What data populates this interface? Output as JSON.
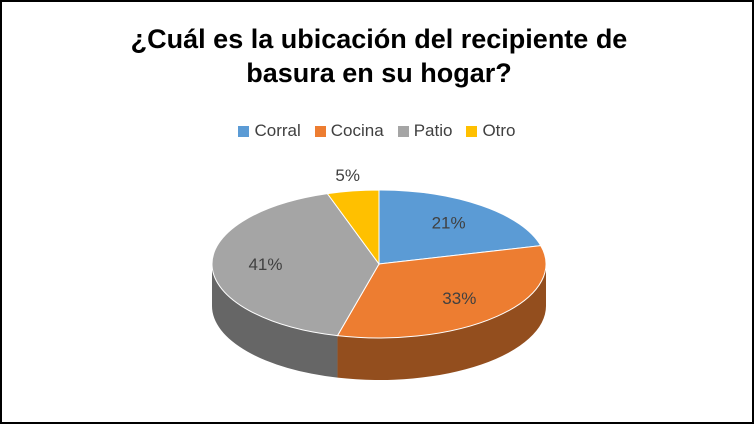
{
  "chart_data": {
    "type": "pie3d",
    "title": "¿Cuál es la ubicación del recipiente de basura en su hogar?",
    "categories": [
      "Corral",
      "Cocina",
      "Patio",
      "Otro"
    ],
    "values": [
      21,
      33,
      41,
      5
    ],
    "value_labels": [
      "21%",
      "33%",
      "41%",
      "5%"
    ],
    "colors": [
      "#5b9bd5",
      "#ed7d31",
      "#a5a5a5",
      "#ffc000"
    ],
    "legend": "top"
  }
}
